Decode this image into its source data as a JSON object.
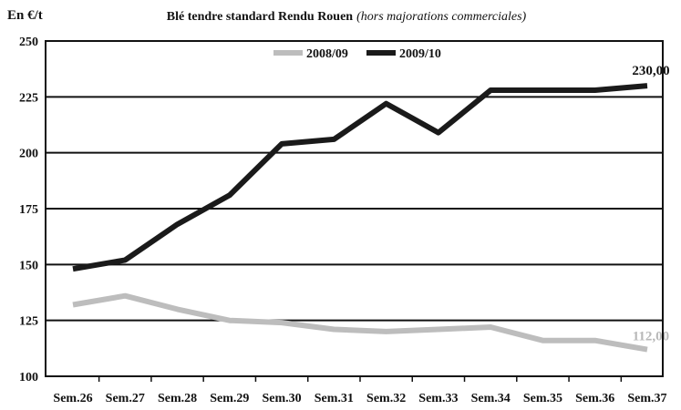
{
  "chart_data": {
    "type": "line",
    "title": "Blé tendre standard Rendu Rouen",
    "subtitle": "(hors majorations commerciales)",
    "ylabel": "En €/t",
    "xlabel": "",
    "categories": [
      "Sem.26",
      "Sem.27",
      "Sem.28",
      "Sem.29",
      "Sem.30",
      "Sem.31",
      "Sem.32",
      "Sem.33",
      "Sem.34",
      "Sem.35",
      "Sem.36",
      "Sem.37"
    ],
    "ylim": [
      100,
      250
    ],
    "yticks": [
      "100",
      "125",
      "150",
      "175",
      "200",
      "225",
      "250"
    ],
    "grid": true,
    "legend_position": "top-center",
    "series": [
      {
        "name": "2008/09",
        "color": "#bdbdbd",
        "values": [
          132,
          136,
          130,
          125,
          124,
          121,
          120,
          121,
          122,
          116,
          116,
          112
        ],
        "end_label": "112,00"
      },
      {
        "name": "2009/10",
        "color": "#1a1a1a",
        "values": [
          148,
          152,
          168,
          181,
          204,
          206,
          222,
          209,
          228,
          228,
          228,
          230
        ],
        "end_label": "230,00"
      }
    ]
  }
}
